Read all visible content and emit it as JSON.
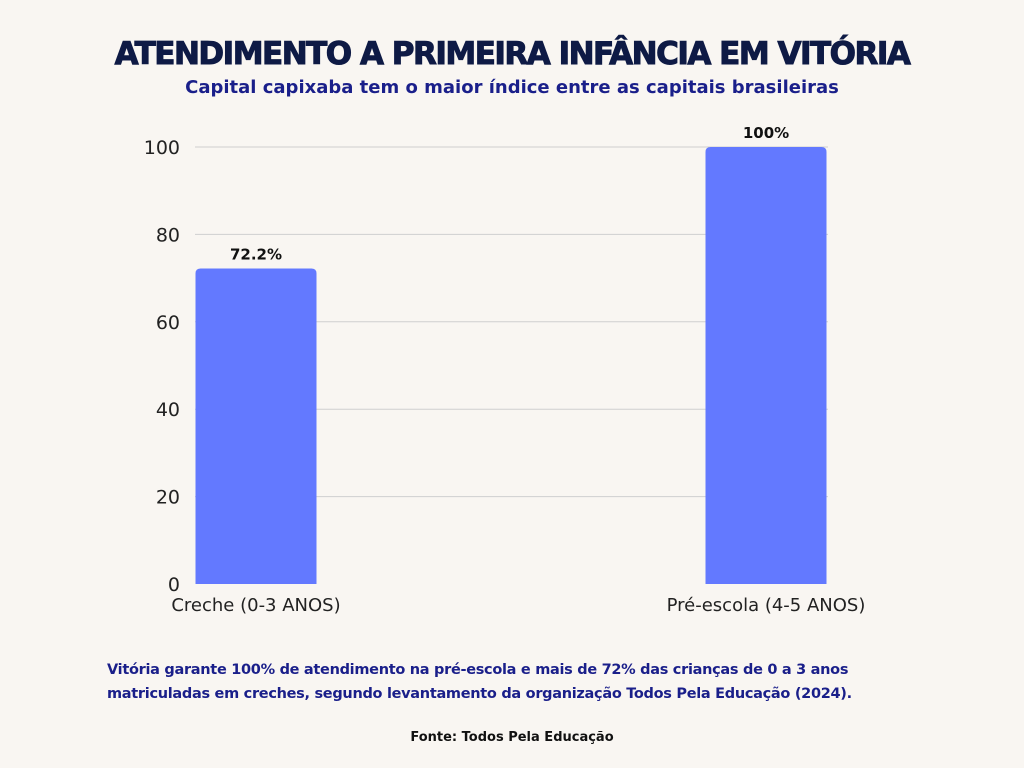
{
  "title": "ATENDIMENTO A PRIMEIRA INFÂNCIA EM VITÓRIA",
  "subtitle": "Capital capixaba tem o maior índice entre as capitais brasileiras",
  "description": "Vitória garante 100% de atendimento na pré-escola e mais de 72% das crianças de 0 a 3 anos matriculadas em creches, segundo levantamento da organização Todos Pela Educação (2024).",
  "source": "Fonte: Todos Pela Educação",
  "chart_data": {
    "type": "bar",
    "categories": [
      "Creche (0-3 ANOS)",
      "Pré-escola (4-5 ANOS)"
    ],
    "values": [
      72.2,
      100
    ],
    "data_labels": [
      "72.2%",
      "100%"
    ],
    "ylim": [
      0,
      100
    ],
    "yticks": [
      0,
      20,
      40,
      60,
      80,
      100
    ],
    "grid": true,
    "legend": "none",
    "bar_color": "#6379ff",
    "xlabel": "",
    "ylabel": ""
  }
}
